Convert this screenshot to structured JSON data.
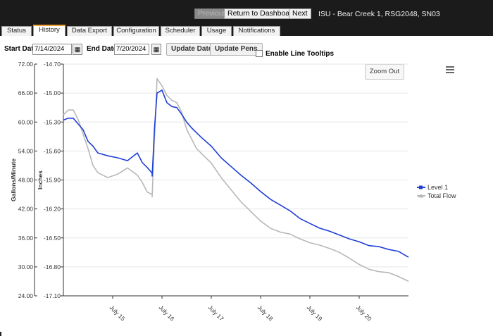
{
  "topbar": {
    "previous_label": "Previous",
    "return_label": "Return to Dashboard",
    "next_label": "Next",
    "device_title": "ISU - Bear Creek 1, RSG2048, SN03"
  },
  "tabs": [
    {
      "label": "Status"
    },
    {
      "label": "History"
    },
    {
      "label": "Data Export"
    },
    {
      "label": "Configuration"
    },
    {
      "label": "Scheduler"
    },
    {
      "label": "Usage"
    },
    {
      "label": "Notifications"
    }
  ],
  "controls": {
    "start_label": "Start Date:",
    "start_value": "7/14/2024",
    "end_label": "End Date:",
    "end_value": "7/20/2024",
    "update_date_label": "Update Date",
    "update_pens_label": "Update Pens",
    "tooltips_label": "Enable Line Tooltips",
    "zoom_out_label": "Zoom Out"
  },
  "chart_data": {
    "type": "line",
    "y1label": "Gallons/Minute",
    "y2label": "Inches",
    "y1_ticks": [
      "72.00",
      "66.00",
      "60.00",
      "54.00",
      "48.00",
      "42.00",
      "36.00",
      "30.00",
      "24.00"
    ],
    "y2_ticks": [
      "-14.70",
      "-15.00",
      "-15.30",
      "-15.60",
      "-15.90",
      "-16.20",
      "-16.50",
      "-16.80",
      "-17.10"
    ],
    "y1lim": [
      24,
      72
    ],
    "y2lim": [
      -17.1,
      -14.7
    ],
    "x_ticks": [
      "July 15",
      "July 16",
      "July 17",
      "July 18",
      "July 19",
      "July 20"
    ],
    "xlim": [
      14.0,
      21.0
    ],
    "x_tick_days": [
      15.0,
      16.0,
      17.0,
      18.0,
      19.0,
      20.0
    ],
    "grid": true,
    "legend_position": "right",
    "series": [
      {
        "name": "Level 1",
        "axis": "inches",
        "color": "#1f3fd6",
        "x": [
          14.0,
          14.1,
          14.2,
          14.3,
          14.4,
          14.5,
          14.6,
          14.7,
          14.9,
          15.1,
          15.3,
          15.5,
          15.6,
          15.7,
          15.8,
          15.8,
          15.85,
          15.9,
          16.0,
          16.1,
          16.2,
          16.3,
          16.4,
          16.5,
          16.6,
          16.7,
          16.8,
          17.0,
          17.2,
          17.4,
          17.6,
          17.8,
          18.0,
          18.2,
          18.4,
          18.6,
          18.8,
          19.0,
          19.2,
          19.4,
          19.6,
          19.8,
          20.0,
          20.2,
          20.4,
          20.6,
          20.8,
          21.0
        ],
        "y": [
          -15.28,
          -15.26,
          -15.26,
          -15.32,
          -15.38,
          -15.5,
          -15.55,
          -15.62,
          -15.65,
          -15.67,
          -15.7,
          -15.62,
          -15.72,
          -15.77,
          -15.83,
          -15.86,
          -15.35,
          -15.0,
          -14.97,
          -15.1,
          -15.14,
          -15.15,
          -15.22,
          -15.3,
          -15.36,
          -15.41,
          -15.46,
          -15.55,
          -15.67,
          -15.76,
          -15.85,
          -15.93,
          -16.02,
          -16.1,
          -16.16,
          -16.22,
          -16.3,
          -16.35,
          -16.4,
          -16.43,
          -16.47,
          -16.51,
          -16.54,
          -16.58,
          -16.59,
          -16.62,
          -16.64,
          -16.7
        ]
      },
      {
        "name": "Total Flow",
        "axis": "gpm",
        "color": "#b8b8b8",
        "x": [
          14.0,
          14.1,
          14.2,
          14.3,
          14.4,
          14.5,
          14.6,
          14.7,
          14.9,
          15.1,
          15.3,
          15.5,
          15.6,
          15.7,
          15.8,
          15.8,
          15.85,
          15.9,
          16.0,
          16.1,
          16.2,
          16.3,
          16.4,
          16.5,
          16.6,
          16.7,
          16.8,
          17.0,
          17.2,
          17.4,
          17.6,
          17.8,
          18.0,
          18.2,
          18.4,
          18.6,
          18.8,
          19.0,
          19.2,
          19.4,
          19.6,
          19.8,
          20.0,
          20.2,
          20.4,
          20.6,
          20.8,
          21.0
        ],
        "y": [
          61.5,
          62.5,
          62.5,
          60.5,
          57.5,
          54.5,
          51.0,
          49.5,
          48.5,
          49.2,
          50.5,
          49.0,
          47.5,
          45.5,
          45.0,
          44.5,
          57.0,
          69.0,
          67.5,
          65.5,
          64.5,
          64.0,
          62.0,
          58.5,
          56.5,
          54.5,
          53.5,
          51.5,
          48.5,
          46.0,
          43.5,
          41.5,
          39.5,
          38.0,
          37.2,
          36.8,
          35.8,
          35.0,
          34.5,
          33.8,
          33.0,
          31.8,
          30.5,
          29.5,
          29.0,
          28.8,
          28.0,
          27.0
        ]
      }
    ]
  }
}
